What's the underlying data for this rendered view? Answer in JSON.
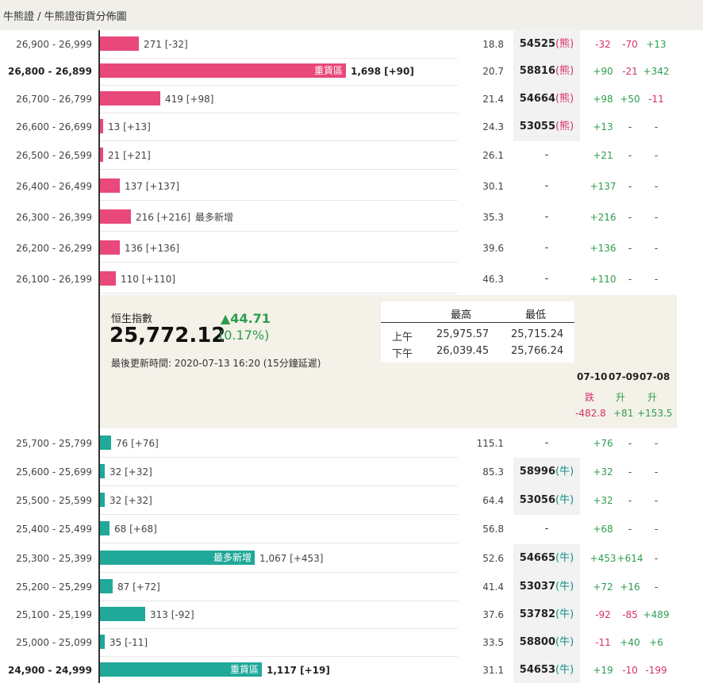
{
  "breadcrumb": "牛熊證 / 牛熊證街貨分佈圖",
  "bear_rows": [
    {
      "range": "26,900 - 26,999",
      "outstanding": "271 [-32]",
      "value": 271,
      "tag": "",
      "ratio": "18.8",
      "code": "54525",
      "code_suffix": "(熊)",
      "d1": "-32",
      "d2": "-70",
      "d3": "+13",
      "bold": false,
      "label_inside": false
    },
    {
      "range": "26,800 - 26,899",
      "outstanding": "1,698 [+90]",
      "value": 1698,
      "tag": "重貨區",
      "ratio": "20.7",
      "code": "58816",
      "code_suffix": "(熊)",
      "d1": "+90",
      "d2": "-21",
      "d3": "+342",
      "bold": true,
      "label_inside": true
    },
    {
      "range": "26,700 - 26,799",
      "outstanding": "419 [+98]",
      "value": 419,
      "tag": "",
      "ratio": "21.4",
      "code": "54664",
      "code_suffix": "(熊)",
      "d1": "+98",
      "d2": "+50",
      "d3": "-11",
      "bold": false,
      "label_inside": false
    },
    {
      "range": "26,600 - 26,699",
      "outstanding": "13 [+13]",
      "value": 13,
      "tag": "",
      "ratio": "24.3",
      "code": "53055",
      "code_suffix": "(熊)",
      "d1": "+13",
      "d2": "-",
      "d3": "-",
      "bold": false,
      "label_inside": false
    },
    {
      "range": "26,500 - 26,599",
      "outstanding": "21 [+21]",
      "value": 21,
      "tag": "",
      "ratio": "26.1",
      "code": "-",
      "code_suffix": "",
      "d1": "+21",
      "d2": "-",
      "d3": "-",
      "bold": false,
      "label_inside": false
    },
    {
      "range": "26,400 - 26,499",
      "outstanding": "137 [+137]",
      "value": 137,
      "tag": "",
      "ratio": "30.1",
      "code": "-",
      "code_suffix": "",
      "d1": "+137",
      "d2": "-",
      "d3": "-",
      "bold": false,
      "label_inside": false
    },
    {
      "range": "26,300 - 26,399",
      "outstanding": "216 [+216]",
      "value": 216,
      "tag": "最多新增",
      "ratio": "35.3",
      "code": "-",
      "code_suffix": "",
      "d1": "+216",
      "d2": "-",
      "d3": "-",
      "bold": false,
      "label_inside": false
    },
    {
      "range": "26,200 - 26,299",
      "outstanding": "136 [+136]",
      "value": 136,
      "tag": "",
      "ratio": "39.6",
      "code": "-",
      "code_suffix": "",
      "d1": "+136",
      "d2": "-",
      "d3": "-",
      "bold": false,
      "label_inside": false
    },
    {
      "range": "26,100 - 26,199",
      "outstanding": "110 [+110]",
      "value": 110,
      "tag": "",
      "ratio": "46.3",
      "code": "-",
      "code_suffix": "",
      "d1": "+110",
      "d2": "-",
      "d3": "-",
      "bold": false,
      "label_inside": false
    }
  ],
  "index_panel": {
    "label": "恒生指數",
    "value": "25,772.12",
    "change": "▲44.71",
    "change_pct": "(0.17%)",
    "updated": "最後更新時間: 2020-07-13 16:20 (15分鐘延遲)",
    "hl_headers": [
      "最高",
      "最低"
    ],
    "hl_rows": [
      {
        "session": "上午",
        "high": "25,975.57",
        "low": "25,715.24"
      },
      {
        "session": "下午",
        "high": "26,039.45",
        "low": "25,766.24"
      }
    ],
    "days": [
      {
        "date": "07-10",
        "status": "跌",
        "change": "-482.8",
        "dir": "neg"
      },
      {
        "date": "07-09",
        "status": "升",
        "change": "+81",
        "dir": "pos"
      },
      {
        "date": "07-08",
        "status": "升",
        "change": "+153.5",
        "dir": "pos"
      }
    ]
  },
  "bull_rows": [
    {
      "range": "25,700 - 25,799",
      "outstanding": "76 [+76]",
      "value": 76,
      "tag": "",
      "ratio": "115.1",
      "code": "-",
      "code_suffix": "",
      "d1": "+76",
      "d2": "-",
      "d3": "-",
      "bold": false,
      "label_inside": false
    },
    {
      "range": "25,600 - 25,699",
      "outstanding": "32 [+32]",
      "value": 32,
      "tag": "",
      "ratio": "85.3",
      "code": "58996",
      "code_suffix": "(牛)",
      "d1": "+32",
      "d2": "-",
      "d3": "-",
      "bold": false,
      "label_inside": false
    },
    {
      "range": "25,500 - 25,599",
      "outstanding": "32 [+32]",
      "value": 32,
      "tag": "",
      "ratio": "64.4",
      "code": "53056",
      "code_suffix": "(牛)",
      "d1": "+32",
      "d2": "-",
      "d3": "-",
      "bold": false,
      "label_inside": false
    },
    {
      "range": "25,400 - 25,499",
      "outstanding": "68 [+68]",
      "value": 68,
      "tag": "",
      "ratio": "56.8",
      "code": "-",
      "code_suffix": "",
      "d1": "+68",
      "d2": "-",
      "d3": "-",
      "bold": false,
      "label_inside": false
    },
    {
      "range": "25,300 - 25,399",
      "outstanding": "1,067 [+453]",
      "value": 1067,
      "tag": "最多新增",
      "ratio": "52.6",
      "code": "54665",
      "code_suffix": "(牛)",
      "d1": "+453",
      "d2": "+614",
      "d3": "-",
      "bold": false,
      "label_inside": true
    },
    {
      "range": "25,200 - 25,299",
      "outstanding": "87 [+72]",
      "value": 87,
      "tag": "",
      "ratio": "41.4",
      "code": "53037",
      "code_suffix": "(牛)",
      "d1": "+72",
      "d2": "+16",
      "d3": "-",
      "bold": false,
      "label_inside": false
    },
    {
      "range": "25,100 - 25,199",
      "outstanding": "313 [-92]",
      "value": 313,
      "tag": "",
      "ratio": "37.6",
      "code": "53782",
      "code_suffix": "(牛)",
      "d1": "-92",
      "d2": "-85",
      "d3": "+489",
      "bold": false,
      "label_inside": false
    },
    {
      "range": "25,000 - 25,099",
      "outstanding": "35 [-11]",
      "value": 35,
      "tag": "",
      "ratio": "33.5",
      "code": "58800",
      "code_suffix": "(牛)",
      "d1": "-11",
      "d2": "+40",
      "d3": "+6",
      "bold": false,
      "label_inside": false
    },
    {
      "range": "24,900 - 24,999",
      "outstanding": "1,117 [+19]",
      "value": 1117,
      "tag": "重貨區",
      "ratio": "31.1",
      "code": "54653",
      "code_suffix": "(牛)",
      "d1": "+19",
      "d2": "-10",
      "d3": "-199",
      "bold": true,
      "label_inside": true
    }
  ],
  "colors": {
    "bear": "#e8487a",
    "bull": "#20a899",
    "up": "#2e9d4f",
    "down": "#d7306a"
  }
}
